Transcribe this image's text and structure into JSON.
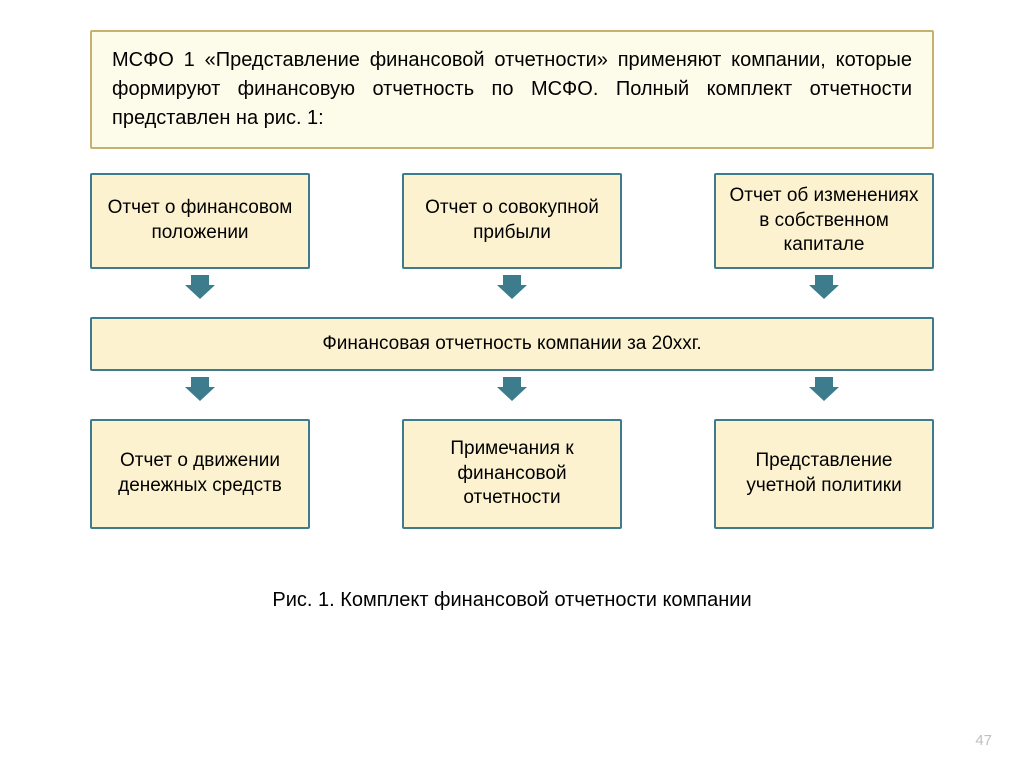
{
  "header": {
    "text": "МСФО 1 «Представление финансовой отчетности» применяют компании, которые формируют финансовую отчетность по МСФО. Полный комплект отчетности представлен на рис. 1:"
  },
  "diagram": {
    "type": "flowchart",
    "node_fill": "#fdf2d0",
    "node_border": "#3c7c8c",
    "header_fill": "#fdfbe9",
    "header_border": "#c6b26e",
    "arrow_color": "#3c7c8c",
    "background": "#ffffff",
    "node_fontsize": 19,
    "header_fontsize": 20,
    "top_row": [
      {
        "id": "n1",
        "label": "Отчет о финансовом положении"
      },
      {
        "id": "n2",
        "label": "Отчет о совокупной прибыли"
      },
      {
        "id": "n3",
        "label": "Отчет об изменениях в собственном капитале"
      }
    ],
    "center": {
      "id": "nc",
      "label": "Финансовая отчетность компании за 20ххг."
    },
    "bottom_row": [
      {
        "id": "n4",
        "label": "Отчет о движении денежных средств"
      },
      {
        "id": "n5",
        "label": "Примечания к финансовой отчетности"
      },
      {
        "id": "n6",
        "label": "Представление учетной политики"
      }
    ],
    "edges": [
      {
        "from": "n1",
        "to": "nc"
      },
      {
        "from": "n2",
        "to": "nc"
      },
      {
        "from": "n3",
        "to": "nc"
      },
      {
        "from": "nc",
        "to": "n4"
      },
      {
        "from": "nc",
        "to": "n5"
      },
      {
        "from": "nc",
        "to": "n6"
      }
    ]
  },
  "caption": "Рис. 1. Комплект финансовой отчетности компании",
  "page_number": "47"
}
